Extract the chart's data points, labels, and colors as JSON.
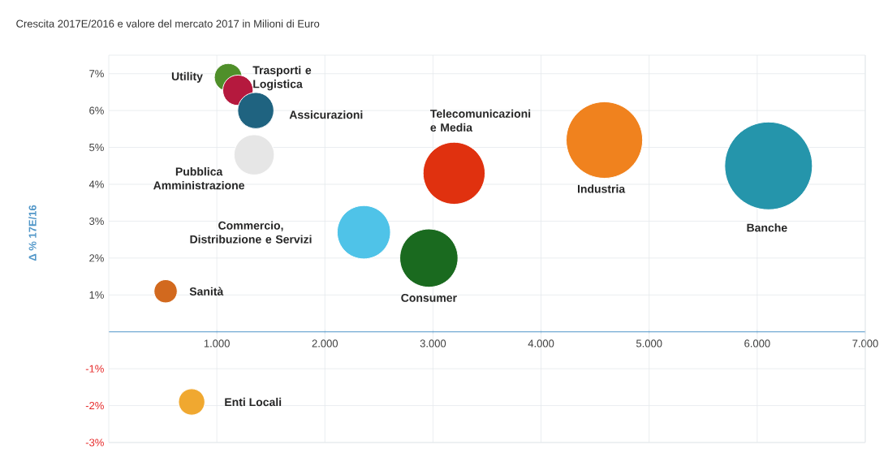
{
  "chart_data": {
    "type": "bubble",
    "title": "Crescita 2017E/2016 e valore del mercato 2017 in Milioni di Euro",
    "ylabel": "Δ % 17E/16",
    "series": [
      {
        "name": "Utility",
        "color": "#4f8f2a",
        "x": [
          1105
        ],
        "values": [
          6.9
        ],
        "sizes": [
          0.1
        ]
      },
      {
        "name": "Trasporti e Logistica",
        "color": "#b5193e",
        "x": [
          1195
        ],
        "values": [
          6.55
        ],
        "sizes": [
          0.12
        ]
      },
      {
        "name": "Assicurazioni",
        "color": "#1f6380",
        "x": [
          1360
        ],
        "values": [
          6.0
        ],
        "sizes": [
          0.17
        ]
      },
      {
        "name": "Pubblica Amministrazione",
        "color": "#e6e6e6",
        "x": [
          1345
        ],
        "values": [
          4.8
        ],
        "sizes": [
          0.21
        ]
      },
      {
        "name": "Telecomunicazioni e Media",
        "color": "#e0310f",
        "x": [
          3195
        ],
        "values": [
          4.3
        ],
        "sizes": [
          0.5
        ]
      },
      {
        "name": "Industria",
        "color": "#f0821e",
        "x": [
          4586
        ],
        "values": [
          5.2
        ],
        "sizes": [
          0.76
        ]
      },
      {
        "name": "Banche",
        "color": "#2595ab",
        "x": [
          6105
        ],
        "values": [
          4.5
        ],
        "sizes": [
          1
        ]
      },
      {
        "name": "Commercio, Distribuzione e Servizi",
        "color": "#4fc3e8",
        "x": [
          2360
        ],
        "values": [
          2.7
        ],
        "sizes": [
          0.37
        ]
      },
      {
        "name": "Consumer",
        "color": "#1a6a1f",
        "x": [
          2962
        ],
        "values": [
          2.0
        ],
        "sizes": [
          0.44
        ]
      },
      {
        "name": "Sanità",
        "color": "#d2691e",
        "x": [
          526
        ],
        "values": [
          1.1
        ],
        "sizes": [
          0.07
        ]
      },
      {
        "name": "Enti Locali",
        "color": "#f0a830",
        "x": [
          767
        ],
        "values": [
          -1.9
        ],
        "sizes": [
          0.09
        ]
      }
    ],
    "xlim": [
      0,
      7000
    ],
    "ylim": [
      -3,
      7.5
    ],
    "xticks": [
      {
        "value": 1000,
        "label": "1.000"
      },
      {
        "value": 2000,
        "label": "2.000"
      },
      {
        "value": 3000,
        "label": "3.000"
      },
      {
        "value": 4000,
        "label": "4.000"
      },
      {
        "value": 5000,
        "label": "5.000"
      },
      {
        "value": 6000,
        "label": "6.000"
      },
      {
        "value": 7000,
        "label": "7.000"
      }
    ],
    "yticks": [
      {
        "value": 7,
        "label": "7%"
      },
      {
        "value": 6,
        "label": "6%"
      },
      {
        "value": 5,
        "label": "5%"
      },
      {
        "value": 4,
        "label": "4%"
      },
      {
        "value": 3,
        "label": "3%"
      },
      {
        "value": 2,
        "label": "2%"
      },
      {
        "value": 1,
        "label": "1%"
      },
      {
        "value": -1,
        "label": "-1%"
      },
      {
        "value": -2,
        "label": "-2%"
      },
      {
        "value": -3,
        "label": "-3%"
      }
    ],
    "grid": true
  }
}
